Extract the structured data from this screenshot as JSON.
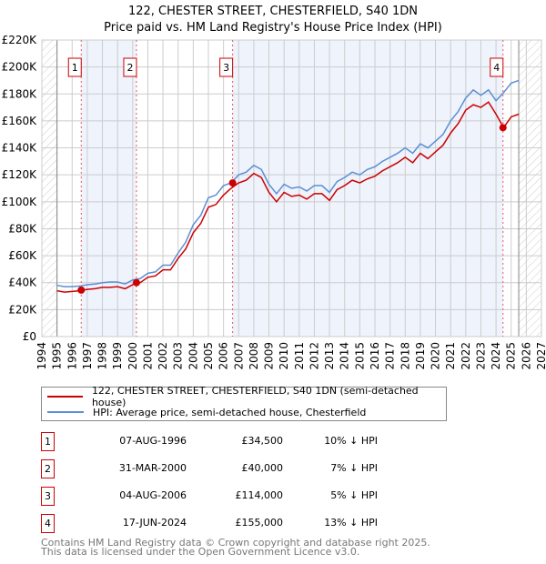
{
  "title": "122, CHESTER STREET, CHESTERFIELD, S40 1DN",
  "subtitle": "Price paid vs. HM Land Registry's House Price Index (HPI)",
  "chart_data": {
    "type": "line",
    "ylim": [
      0,
      220000
    ],
    "xlim": [
      1994,
      2027
    ],
    "yticks": [
      {
        "v": 0,
        "label": "£0"
      },
      {
        "v": 20000,
        "label": "£20K"
      },
      {
        "v": 40000,
        "label": "£40K"
      },
      {
        "v": 60000,
        "label": "£60K"
      },
      {
        "v": 80000,
        "label": "£80K"
      },
      {
        "v": 100000,
        "label": "£100K"
      },
      {
        "v": 120000,
        "label": "£120K"
      },
      {
        "v": 140000,
        "label": "£140K"
      },
      {
        "v": 160000,
        "label": "£160K"
      },
      {
        "v": 180000,
        "label": "£180K"
      },
      {
        "v": 200000,
        "label": "£200K"
      },
      {
        "v": 220000,
        "label": "£220K"
      }
    ],
    "xticks": [
      "1994",
      "1995",
      "1996",
      "1997",
      "1998",
      "1999",
      "2000",
      "2001",
      "2002",
      "2003",
      "2004",
      "2005",
      "2006",
      "2007",
      "2008",
      "2009",
      "2010",
      "2011",
      "2012",
      "2013",
      "2014",
      "2015",
      "2016",
      "2017",
      "2018",
      "2019",
      "2020",
      "2021",
      "2022",
      "2023",
      "2024",
      "2025",
      "2026",
      "2027"
    ],
    "data_range": [
      1995,
      2025.5
    ],
    "x_start": 1995,
    "x_step": 0.5,
    "series": [
      {
        "name": "122, CHESTER STREET, CHESTERFIELD, S40 1DN (semi-detached house)",
        "color": "#cc0000",
        "values": [
          34,
          33,
          33.5,
          34,
          35,
          35.5,
          36.5,
          36.5,
          37,
          35.5,
          38.5,
          40,
          44,
          45,
          49.5,
          49.5,
          58,
          65,
          77,
          84,
          96,
          98,
          105,
          110,
          114,
          116,
          121,
          118,
          107,
          100,
          107,
          104,
          105,
          102,
          106,
          106,
          101,
          109,
          112,
          116,
          114,
          117,
          119,
          123,
          126,
          129,
          133,
          129,
          136,
          132,
          137,
          142,
          151,
          158,
          168,
          172,
          170,
          174,
          165,
          155,
          163,
          165
        ]
      },
      {
        "name": "HPI: Average price, semi-detached house, Chesterfield",
        "color": "#5b8fd4",
        "values": [
          38,
          37,
          37,
          37.5,
          38.5,
          39,
          40,
          40.5,
          40.5,
          39,
          42,
          43,
          47,
          48,
          53,
          53,
          62,
          70,
          83,
          90,
          103,
          105,
          112,
          114,
          120,
          122,
          127,
          124,
          113,
          106,
          113,
          110,
          111,
          108,
          112,
          112,
          107,
          115,
          118,
          122,
          120,
          124,
          126,
          130,
          133,
          136,
          140,
          136,
          143,
          140,
          145,
          150,
          160,
          167,
          177,
          183,
          179,
          183,
          175,
          181,
          188,
          190
        ]
      }
    ],
    "sales": [
      {
        "n": "1",
        "x": 1996.6,
        "y": 34500,
        "date": "07-AUG-1996",
        "price": "£34,500",
        "hpi": "10% ↓ HPI"
      },
      {
        "n": "2",
        "x": 2000.25,
        "y": 40000,
        "date": "31-MAR-2000",
        "price": "£40,000",
        "hpi": "7% ↓ HPI"
      },
      {
        "n": "3",
        "x": 2006.6,
        "y": 114000,
        "date": "04-AUG-2006",
        "price": "£114,000",
        "hpi": "5% ↓ HPI"
      },
      {
        "n": "4",
        "x": 2024.46,
        "y": 155000,
        "date": "17-JUN-2024",
        "price": "£155,000",
        "hpi": "13% ↓ HPI"
      }
    ]
  },
  "legend": {
    "red": "122, CHESTER STREET, CHESTERFIELD, S40 1DN (semi-detached house)",
    "blue": "HPI: Average price, semi-detached house, Chesterfield"
  },
  "footer": {
    "line1": "Contains HM Land Registry data © Crown copyright and database right 2025.",
    "line2": "This data is licensed under the Open Government Licence v3.0."
  }
}
